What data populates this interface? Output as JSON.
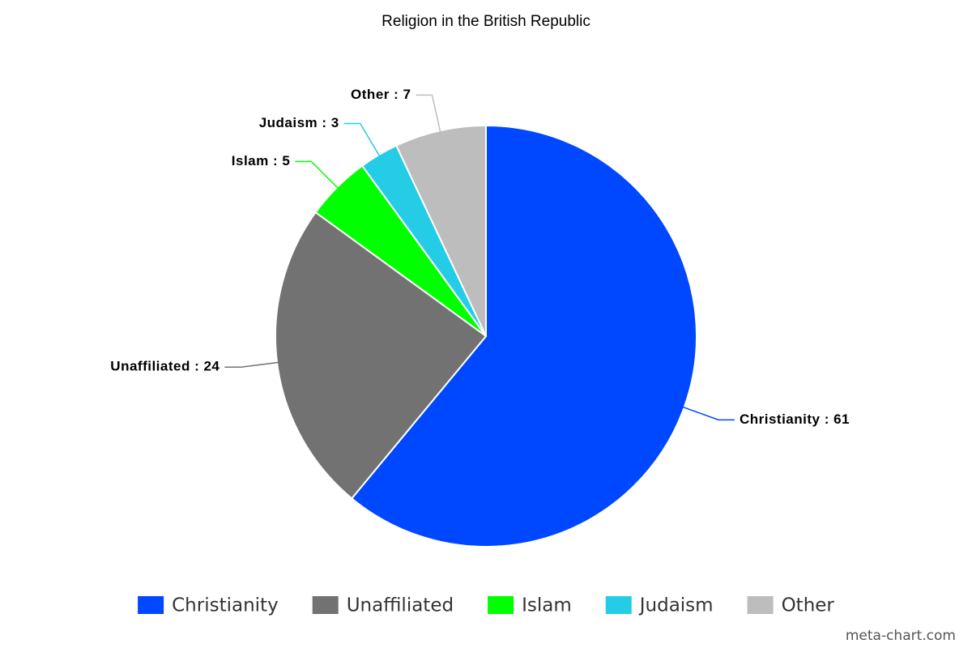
{
  "chart_data": {
    "type": "pie",
    "title": "Religion in the British Republic",
    "categories": [
      "Christianity",
      "Unaffiliated",
      "Islam",
      "Judaism",
      "Other"
    ],
    "values": [
      61,
      24,
      5,
      3,
      7
    ],
    "value_labels": [
      "Christianity : 61",
      "Unaffiliated : 24",
      "Islam : 5",
      "Judaism : 3",
      "Other : 7"
    ],
    "colors": [
      "#0048ff",
      "#727272",
      "#00ff00",
      "#24cce6",
      "#bdbdbd"
    ],
    "legend": "bottom",
    "credit": "meta-chart.com"
  }
}
